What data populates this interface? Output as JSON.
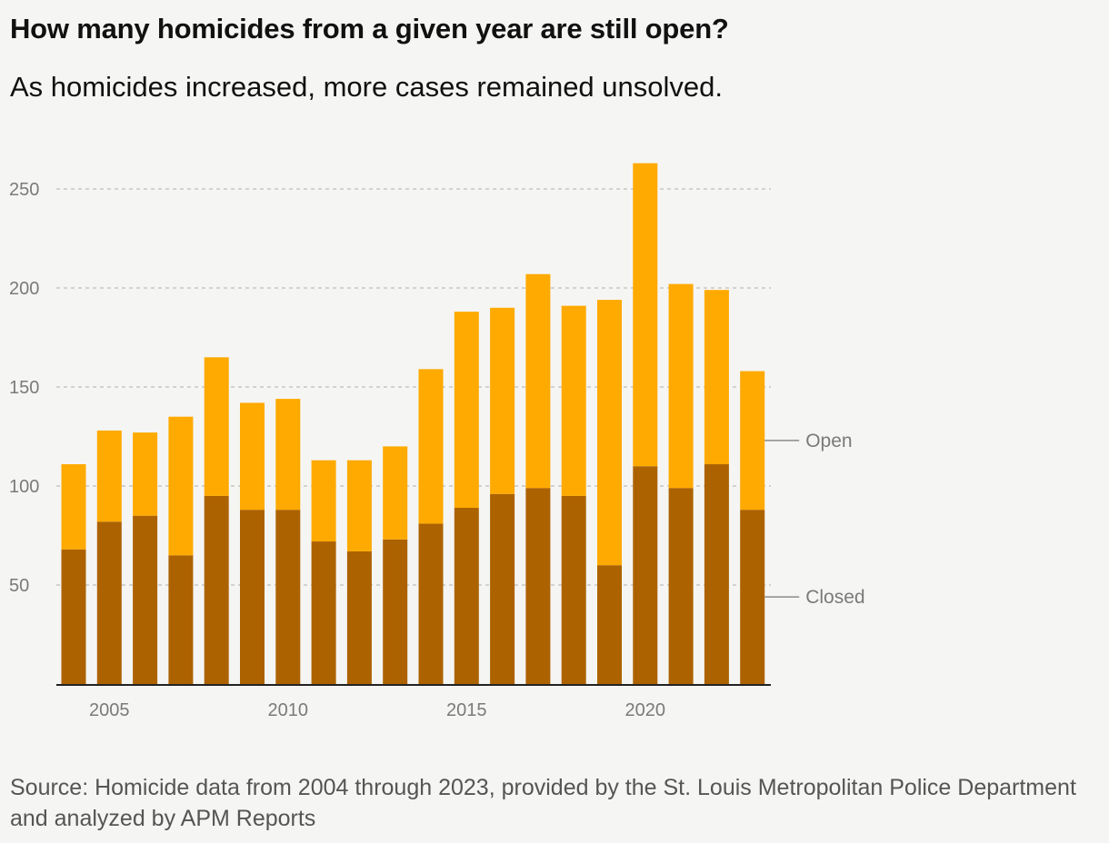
{
  "title": "How many homicides from a given year are still open?",
  "subtitle": "As homicides increased, more cases remained unsolved.",
  "source": "Source: Homicide data from 2004 through 2023, provided by the St. Louis Metropolitan Police Department and analyzed by APM Reports",
  "colors": {
    "open": "#ffaa00",
    "closed": "#ad6200",
    "grid": "#bdbdbd",
    "axis": "#222222",
    "label": "#7a7a7a"
  },
  "chart_data": {
    "type": "bar",
    "stacked": true,
    "categories": [
      2004,
      2005,
      2006,
      2007,
      2008,
      2009,
      2010,
      2011,
      2012,
      2013,
      2014,
      2015,
      2016,
      2017,
      2018,
      2019,
      2020,
      2021,
      2022,
      2023
    ],
    "x_tick_labels": [
      "2005",
      "2010",
      "2015",
      "2020"
    ],
    "y_ticks": [
      50,
      100,
      150,
      200,
      250
    ],
    "ylim": [
      0,
      275
    ],
    "grid": true,
    "series": [
      {
        "name": "Closed",
        "values": [
          68,
          82,
          85,
          65,
          95,
          88,
          88,
          72,
          67,
          73,
          81,
          89,
          96,
          99,
          95,
          60,
          110,
          99,
          111,
          88
        ]
      },
      {
        "name": "Open",
        "values": [
          43,
          46,
          42,
          70,
          70,
          54,
          56,
          41,
          46,
          47,
          78,
          99,
          94,
          108,
          96,
          134,
          153,
          103,
          88,
          70
        ]
      }
    ],
    "legend_placement": "right, direct labels"
  }
}
